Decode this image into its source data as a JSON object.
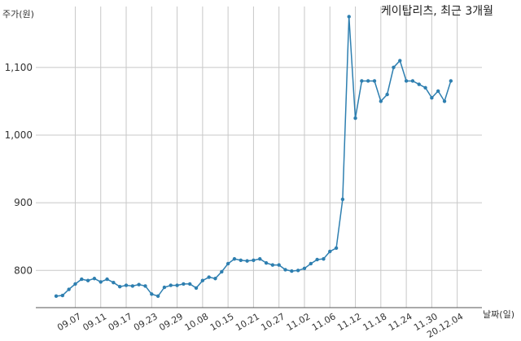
{
  "chart_data": {
    "type": "line",
    "title": "케이탑리츠, 최근 3개월",
    "xlabel": "날짜(일)",
    "ylabel": "주가(원)",
    "ylim": [
      745,
      1190
    ],
    "y_ticks": [
      800,
      900,
      1000,
      1100
    ],
    "y_tick_labels": [
      "800",
      "900",
      "1,000",
      "1,100"
    ],
    "grid": true,
    "line_color": "#2e7fb0",
    "x_tick_labels": [
      "09.07",
      "09.11",
      "09.17",
      "09.23",
      "09.29",
      "10.08",
      "10.15",
      "10.21",
      "10.27",
      "11.02",
      "11.06",
      "11.12",
      "11.18",
      "11.24",
      "11.30",
      "20.12.04"
    ],
    "x_tick_indices": [
      3,
      7,
      11,
      15,
      19,
      23,
      27,
      31,
      35,
      39,
      43,
      47,
      51,
      55,
      59,
      63
    ],
    "series": [
      {
        "values": [
          762,
          763,
          772,
          780,
          787,
          785,
          788,
          783,
          787,
          782,
          776,
          778,
          777,
          779,
          777,
          765,
          762,
          775,
          778,
          778,
          780,
          780,
          774,
          785,
          790,
          788,
          798,
          810,
          817,
          815,
          814,
          815,
          817,
          811,
          808,
          808,
          801,
          799,
          800,
          803,
          810,
          816,
          817,
          828,
          833,
          905,
          1175,
          1025,
          1080,
          1080,
          1080,
          1050,
          1060,
          1100,
          1110,
          1080,
          1080,
          1075,
          1070,
          1055,
          1065,
          1050,
          1080
        ]
      }
    ]
  }
}
